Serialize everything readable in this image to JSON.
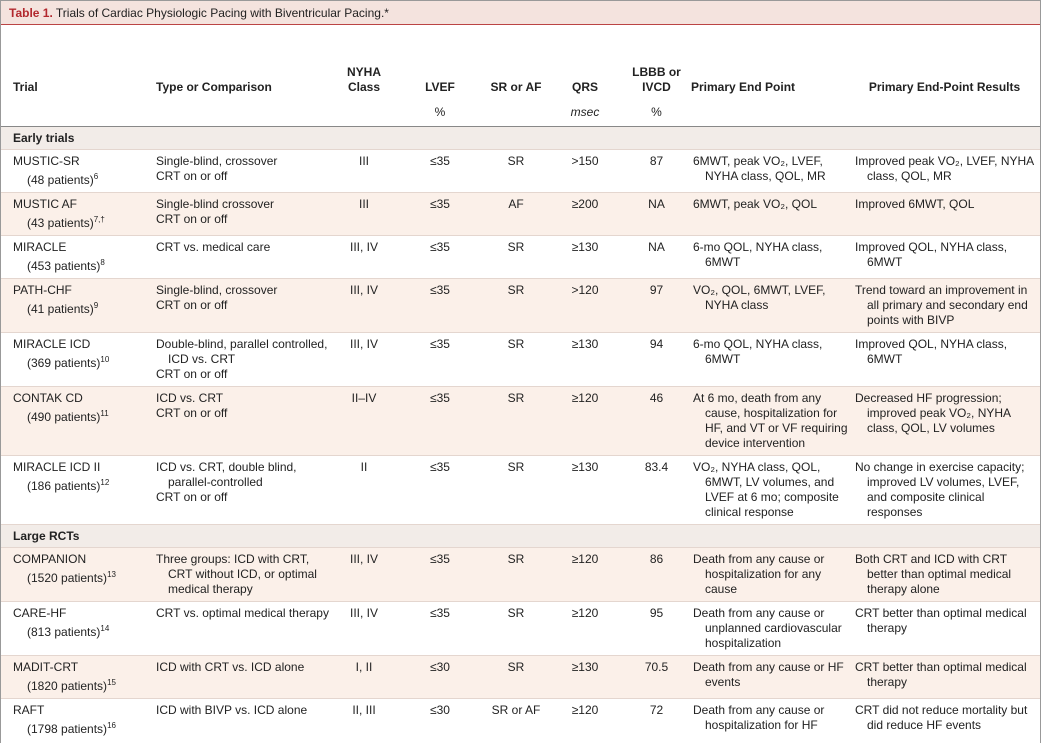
{
  "title": {
    "label": "Table 1.",
    "text": "Trials of Cardiac Physiologic Pacing with Biventricular Pacing.*"
  },
  "header": {
    "columns": [
      "Trial",
      "Type or Comparison",
      "NYHA Class",
      "LVEF",
      "SR or AF",
      "QRS",
      "LBBB or IVCD",
      "Primary End Point",
      "Primary End-Point Results"
    ],
    "units": {
      "3": "%",
      "5": "msec",
      "6": "%"
    }
  },
  "sections": [
    {
      "title": "Early trials",
      "rows": [
        {
          "trial": "MUSTIC-SR",
          "patients": "(48 patients)",
          "ref": "6",
          "type": [
            "Single-blind, crossover",
            "CRT on or off"
          ],
          "nyha": "III",
          "lvef": "≤35",
          "rhythm": "SR",
          "qrs": ">150",
          "lbbb": "87",
          "end_point": "6MWT, peak VO₂, LVEF, NYHA class, QOL, MR",
          "results": "Improved peak VO₂, LVEF, NYHA class, QOL, MR"
        },
        {
          "trial": "MUSTIC AF",
          "patients": "(43 patients)",
          "ref": "7,†",
          "type": [
            "Single-blind crossover",
            "CRT on or off"
          ],
          "nyha": "III",
          "lvef": "≤35",
          "rhythm": "AF",
          "qrs": "≥200",
          "lbbb": "NA",
          "end_point": "6MWT, peak VO₂, QOL",
          "results": "Improved 6MWT, QOL"
        },
        {
          "trial": "MIRACLE",
          "patients": "(453 patients)",
          "ref": "8",
          "type": [
            "CRT vs. medical care"
          ],
          "nyha": "III, IV",
          "lvef": "≤35",
          "rhythm": "SR",
          "qrs": "≥130",
          "lbbb": "NA",
          "end_point": "6-mo QOL, NYHA class, 6MWT",
          "results": "Improved QOL, NYHA class, 6MWT"
        },
        {
          "trial": "PATH-CHF",
          "patients": "(41 patients)",
          "ref": "9",
          "type": [
            "Single-blind, crossover",
            "CRT on or off"
          ],
          "nyha": "III, IV",
          "lvef": "≤35",
          "rhythm": "SR",
          "qrs": ">120",
          "lbbb": "97",
          "end_point": "VO₂, QOL, 6MWT, LVEF, NYHA class",
          "results": "Trend toward an improvement in all primary and secondary end points with BIVP"
        },
        {
          "trial": "MIRACLE ICD",
          "patients": "(369 patients)",
          "ref": "10",
          "type": [
            "Double-blind, parallel controlled, ICD vs. CRT",
            "CRT on or off"
          ],
          "nyha": "III, IV",
          "lvef": "≤35",
          "rhythm": "SR",
          "qrs": "≥130",
          "lbbb": "94",
          "end_point": "6-mo QOL, NYHA class, 6MWT",
          "results": "Improved QOL, NYHA class, 6MWT"
        },
        {
          "trial": "CONTAK CD",
          "patients": "(490 patients)",
          "ref": "11",
          "type": [
            "ICD vs. CRT",
            "CRT on or off"
          ],
          "nyha": "II–IV",
          "lvef": "≤35",
          "rhythm": "SR",
          "qrs": "≥120",
          "lbbb": "46",
          "end_point": "At 6 mo, death from any cause, hospitalization for HF, and VT or VF requiring device intervention",
          "results": "Decreased HF progression; improved peak VO₂, NYHA class, QOL, LV volumes"
        },
        {
          "trial": "MIRACLE ICD II",
          "patients": "(186 patients)",
          "ref": "12",
          "type": [
            "ICD vs. CRT, double blind, parallel-controlled",
            "CRT on or off"
          ],
          "nyha": "II",
          "lvef": "≤35",
          "rhythm": "SR",
          "qrs": "≥130",
          "lbbb": "83.4",
          "end_point": "VO₂, NYHA class, QOL, 6MWT, LV volumes, and LVEF at 6 mo; composite clinical response",
          "results": "No change in exercise capacity; improved LV volumes, LVEF, and composite clinical responses"
        }
      ]
    },
    {
      "title": "Large RCTs",
      "rows": [
        {
          "trial": "COMPANION",
          "patients": "(1520 patients)",
          "ref": "13",
          "type": [
            "Three groups: ICD with CRT, CRT without ICD, or optimal medical therapy"
          ],
          "nyha": "III, IV",
          "lvef": "≤35",
          "rhythm": "SR",
          "qrs": "≥120",
          "lbbb": "86",
          "end_point": "Death from any cause or hospitalization for any cause",
          "results": "Both CRT and ICD with CRT better than optimal medical therapy alone"
        },
        {
          "trial": "CARE-HF",
          "patients": "(813 patients)",
          "ref": "14",
          "type": [
            "CRT vs. optimal medical therapy"
          ],
          "nyha": "III, IV",
          "lvef": "≤35",
          "rhythm": "SR",
          "qrs": "≥120",
          "lbbb": "95",
          "end_point": "Death from any cause or unplanned cardiovascular hospitalization",
          "results": "CRT better than optimal medical therapy"
        },
        {
          "trial": "MADIT-CRT",
          "patients": "(1820 patients)",
          "ref": "15",
          "type": [
            "ICD with CRT vs. ICD alone"
          ],
          "nyha": "I, II",
          "lvef": "≤30",
          "rhythm": "SR",
          "qrs": "≥130",
          "lbbb": "70.5",
          "end_point": "Death from any cause or HF events",
          "results": "CRT better than optimal medical therapy"
        },
        {
          "trial": "RAFT",
          "patients": "(1798 patients)",
          "ref": "16",
          "type": [
            "ICD with BIVP vs. ICD alone"
          ],
          "nyha": "II, III",
          "lvef": "≤30",
          "rhythm": "SR or AF",
          "qrs": "≥120",
          "lbbb": "72",
          "end_point": "Death from any cause or hospitalization for HF",
          "results": "CRT did not reduce mortality but did reduce HF events"
        }
      ]
    }
  ]
}
